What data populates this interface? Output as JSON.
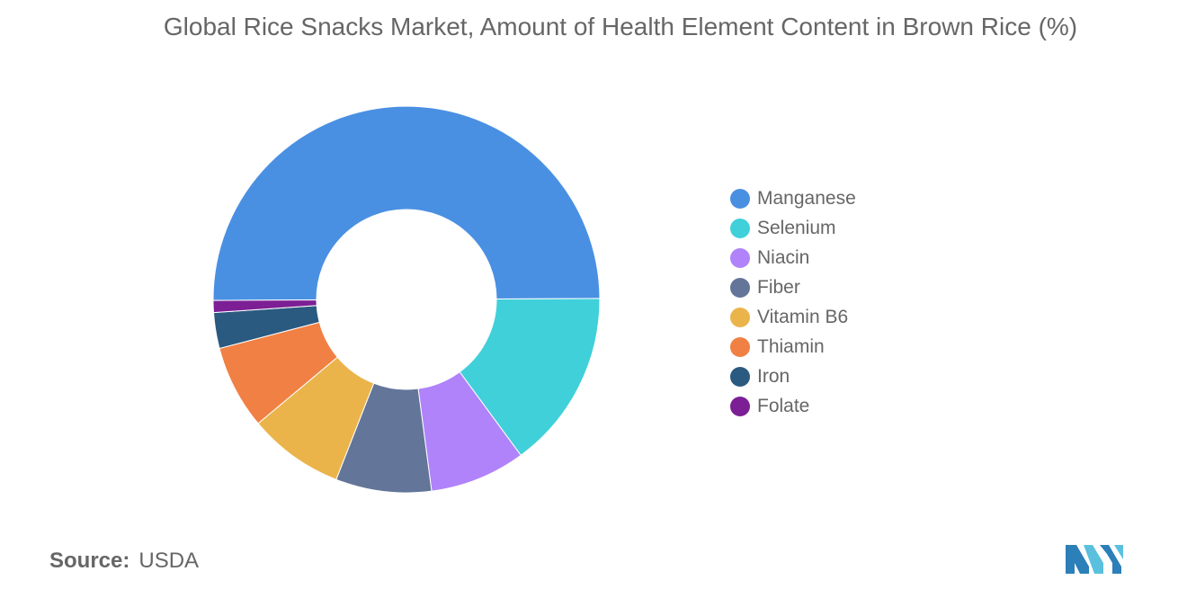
{
  "chart_data": {
    "type": "pie",
    "donut": true,
    "title": "Global Rice Snacks Market, Amount of Health Element Content in Brown Rice (%)",
    "legend_position": "right",
    "series": [
      {
        "name": "Manganese",
        "value": 50.0,
        "color": "#4A90E2"
      },
      {
        "name": "Selenium",
        "value": 15.0,
        "color": "#40D0DA"
      },
      {
        "name": "Niacin",
        "value": 8.0,
        "color": "#B083FA"
      },
      {
        "name": "Fiber",
        "value": 8.0,
        "color": "#637598"
      },
      {
        "name": "Vitamin B6",
        "value": 8.0,
        "color": "#EBB44B"
      },
      {
        "name": "Thiamin",
        "value": 7.0,
        "color": "#F08043"
      },
      {
        "name": "Iron",
        "value": 3.0,
        "color": "#2B5A80"
      },
      {
        "name": "Folate",
        "value": 1.0,
        "color": "#7C1F95"
      }
    ]
  },
  "source": {
    "label": "Source:",
    "value": "USDA"
  },
  "logo": {
    "icon": "mordor-intelligence-logo-icon",
    "colors": [
      "#2C7FB8",
      "#5BC0DE"
    ]
  }
}
